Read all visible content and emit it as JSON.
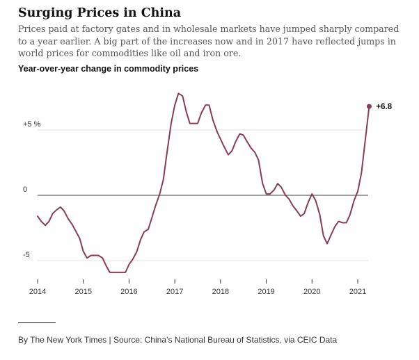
{
  "header": {
    "title": "Surging Prices in China",
    "subtitle": "Prices paid at factory gates and in wholesale markets have jumped sharply compared to a year earlier. A big part of the increases now and in 2017 have reflected jumps in world prices for commodities like oil and iron ore.",
    "chart_heading": "Year-over-year change in commodity prices"
  },
  "footer": {
    "credit": "By The New York Times | Source: China’s National Bureau of Statistics, via CEIC Data"
  },
  "colors": {
    "line": "#8a3b5c",
    "zero_line": "#666666",
    "grid": "#e2e2e2",
    "text": "#333333"
  },
  "chart_data": {
    "type": "line",
    "title": "Year-over-year change in commodity prices",
    "xlabel": "",
    "ylabel": "",
    "y_ticks": [
      {
        "value": 5,
        "label": "+5 %"
      },
      {
        "value": 0,
        "label": "0"
      },
      {
        "value": -5,
        "label": "-5"
      }
    ],
    "x_ticks": [
      {
        "value": 2014,
        "label": "2014"
      },
      {
        "value": 2015,
        "label": "2015"
      },
      {
        "value": 2016,
        "label": "2016"
      },
      {
        "value": 2017,
        "label": "2017"
      },
      {
        "value": 2018,
        "label": "2018"
      },
      {
        "value": 2019,
        "label": "2019"
      },
      {
        "value": 2020,
        "label": "2020"
      },
      {
        "value": 2021,
        "label": "2021"
      }
    ],
    "xlim": [
      2014,
      2021.25
    ],
    "ylim": [
      -6.2,
      7.8
    ],
    "grid": true,
    "end_label": "+6.8",
    "series": [
      {
        "values": [
          [
            2014.0,
            -1.6
          ],
          [
            2014.08,
            -2.0
          ],
          [
            2014.17,
            -2.3
          ],
          [
            2014.25,
            -2.0
          ],
          [
            2014.33,
            -1.4
          ],
          [
            2014.42,
            -1.1
          ],
          [
            2014.5,
            -0.9
          ],
          [
            2014.58,
            -1.2
          ],
          [
            2014.67,
            -1.8
          ],
          [
            2014.75,
            -2.2
          ],
          [
            2014.83,
            -2.7
          ],
          [
            2014.92,
            -3.3
          ],
          [
            2015.0,
            -4.3
          ],
          [
            2015.08,
            -4.8
          ],
          [
            2015.17,
            -4.6
          ],
          [
            2015.25,
            -4.6
          ],
          [
            2015.33,
            -4.6
          ],
          [
            2015.42,
            -4.8
          ],
          [
            2015.5,
            -5.4
          ],
          [
            2015.58,
            -5.9
          ],
          [
            2015.67,
            -5.9
          ],
          [
            2015.75,
            -5.9
          ],
          [
            2015.83,
            -5.9
          ],
          [
            2015.92,
            -5.9
          ],
          [
            2016.0,
            -5.3
          ],
          [
            2016.08,
            -4.9
          ],
          [
            2016.17,
            -4.3
          ],
          [
            2016.25,
            -3.4
          ],
          [
            2016.33,
            -2.8
          ],
          [
            2016.42,
            -2.6
          ],
          [
            2016.5,
            -1.7
          ],
          [
            2016.58,
            -0.8
          ],
          [
            2016.67,
            0.1
          ],
          [
            2016.75,
            1.2
          ],
          [
            2016.83,
            3.3
          ],
          [
            2016.92,
            5.5
          ],
          [
            2017.0,
            6.9
          ],
          [
            2017.08,
            7.8
          ],
          [
            2017.17,
            7.6
          ],
          [
            2017.25,
            6.4
          ],
          [
            2017.33,
            5.5
          ],
          [
            2017.42,
            5.5
          ],
          [
            2017.5,
            5.5
          ],
          [
            2017.58,
            6.3
          ],
          [
            2017.67,
            6.9
          ],
          [
            2017.75,
            6.9
          ],
          [
            2017.83,
            5.8
          ],
          [
            2017.92,
            4.9
          ],
          [
            2018.0,
            4.3
          ],
          [
            2018.08,
            3.7
          ],
          [
            2018.17,
            3.1
          ],
          [
            2018.25,
            3.4
          ],
          [
            2018.33,
            4.1
          ],
          [
            2018.42,
            4.7
          ],
          [
            2018.5,
            4.6
          ],
          [
            2018.58,
            4.1
          ],
          [
            2018.67,
            3.6
          ],
          [
            2018.75,
            3.3
          ],
          [
            2018.83,
            2.7
          ],
          [
            2018.92,
            0.9
          ],
          [
            2019.0,
            0.1
          ],
          [
            2019.08,
            0.1
          ],
          [
            2019.17,
            0.4
          ],
          [
            2019.25,
            0.9
          ],
          [
            2019.33,
            0.6
          ],
          [
            2019.42,
            0.0
          ],
          [
            2019.5,
            -0.3
          ],
          [
            2019.58,
            -0.8
          ],
          [
            2019.67,
            -1.2
          ],
          [
            2019.75,
            -1.6
          ],
          [
            2019.83,
            -1.4
          ],
          [
            2019.92,
            -0.5
          ],
          [
            2020.0,
            0.1
          ],
          [
            2020.08,
            -0.4
          ],
          [
            2020.17,
            -1.5
          ],
          [
            2020.25,
            -3.1
          ],
          [
            2020.33,
            -3.7
          ],
          [
            2020.42,
            -3.0
          ],
          [
            2020.5,
            -2.4
          ],
          [
            2020.58,
            -2.0
          ],
          [
            2020.67,
            -2.1
          ],
          [
            2020.75,
            -2.1
          ],
          [
            2020.83,
            -1.5
          ],
          [
            2020.92,
            -0.4
          ],
          [
            2021.0,
            0.3
          ],
          [
            2021.08,
            1.7
          ],
          [
            2021.17,
            4.4
          ],
          [
            2021.25,
            6.8
          ]
        ]
      }
    ]
  }
}
